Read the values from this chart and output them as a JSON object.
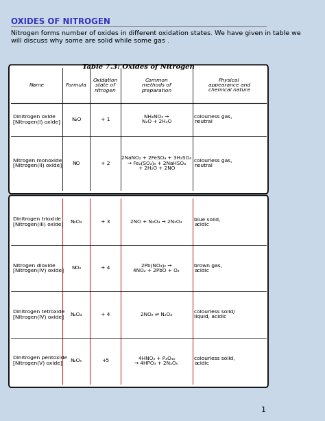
{
  "title": "OXIDES OF NITROGEN",
  "subtitle": "Nitrogen forms number of oxides in different oxidation states. We have given in table we\nwill discuss why some are solid while some gas .",
  "table_title": "Table 7.3: Oxides of Nitrogen",
  "bg_color": "#c8d8e8",
  "page_number": "1",
  "table1": {
    "headers": [
      "Name",
      "Formula",
      "Oxidation\nstate of\nnitrogen",
      "Common\nmethods of\npreparation",
      "Physical\nappearance and\nchemical nature"
    ],
    "rows": [
      {
        "name": "Dinitrogen oxide\n[Nitrogen(I) oxide]",
        "formula": "N₂O",
        "ox_state": "+ 1",
        "preparation": "NH₄NO₃ →\nN₂O + 2H₂O",
        "properties": "colourless gas,\nneutral"
      },
      {
        "name": "Nitrogen monoxide\n[Nitrogen(II) oxide]",
        "formula": "NO",
        "ox_state": "+ 2",
        "preparation": "2NaNO₂ + 2FeSO₄ + 3H₂SO₄\n→ Fe₂(SO₄)₃ + 2NaHSO₄\n+ 2H₂O + 2NO",
        "properties": "colourless gas,\nneutral"
      }
    ]
  },
  "table2": {
    "rows": [
      {
        "name": "Dinitrogen trioxide\n[Nitrogen(III) oxide]",
        "formula": "N₂O₃",
        "ox_state": "+ 3",
        "preparation": "2NO + N₂O₄ → 2N₂O₃",
        "properties": "blue solid,\nacidic"
      },
      {
        "name": "Nitrogen dioxide\n[Nitrogen(IV) oxide]",
        "formula": "NO₂",
        "ox_state": "+ 4",
        "preparation": "2Pb(NO₃)₂ →\n4NO₂ + 2PbO + O₂",
        "properties": "brown gas,\nacidic"
      },
      {
        "name": "Dinitrogen tetroxide\n[Nitrogen(IV) oxide]",
        "formula": "N₂O₄",
        "ox_state": "+ 4",
        "preparation": "2NO₂ ⇌ N₂O₄",
        "properties": "colourless solid/\nliquid, acidic"
      },
      {
        "name": "Dinitrogen pentoxide\n[Nitrogen(V) oxide]",
        "formula": "N₂O₅",
        "ox_state": "+5",
        "preparation": "4HNO₃ + P₄O₁₀\n→ 4HPO₃ + 2N₂O₅",
        "properties": "colourless solid,\nacidic"
      }
    ]
  }
}
